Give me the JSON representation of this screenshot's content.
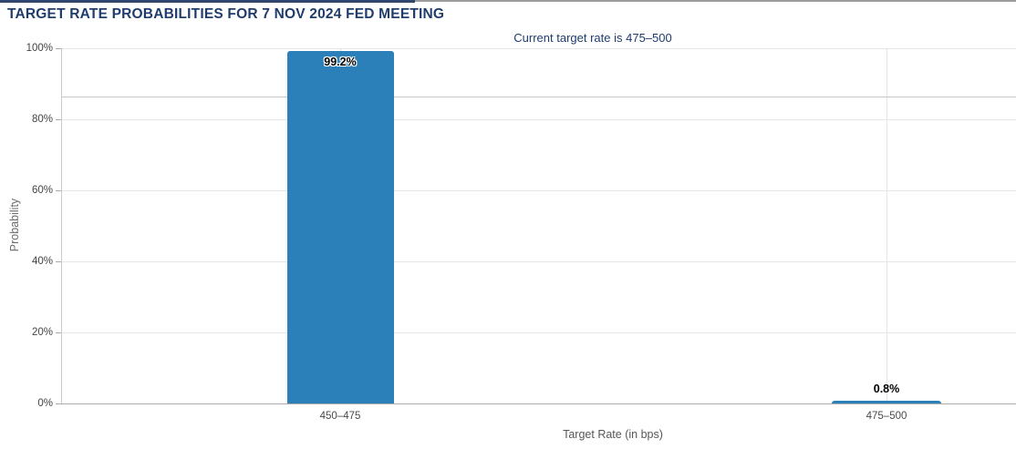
{
  "header": {
    "title": "TARGET RATE PROBABILITIES FOR 7 NOV 2024 FED MEETING",
    "subtitle": "Current target rate is 475–500"
  },
  "chart_data": {
    "type": "bar",
    "title": "TARGET RATE PROBABILITIES FOR 7 NOV 2024 FED MEETING",
    "subtitle": "Current target rate is 475–500",
    "categories": [
      "450–475",
      "475–500"
    ],
    "values": [
      99.2,
      0.8
    ],
    "value_labels": [
      "99.2%",
      "0.8%"
    ],
    "xlabel": "Target Rate (in bps)",
    "ylabel": "Probability",
    "ylim": [
      0,
      100
    ],
    "ytick_values": [
      0,
      20,
      40,
      60,
      80,
      100
    ],
    "ytick_labels": [
      "0%",
      "20%",
      "40%",
      "60%",
      "80%",
      "100%"
    ],
    "grid": "horizontal major gridlines every 20%, faint vertical gridline at each category center",
    "legend": "none",
    "bar_color": "#2b80ba",
    "reference_line_percent": 86.5
  },
  "colors": {
    "bar": "#2b80ba",
    "title_navy": "#1f3c6d",
    "top_border_navy": "#31476e",
    "top_border_gray": "#9c9c9c",
    "gridline": "#e6e6e6",
    "axis_line": "#c9c9c9"
  }
}
